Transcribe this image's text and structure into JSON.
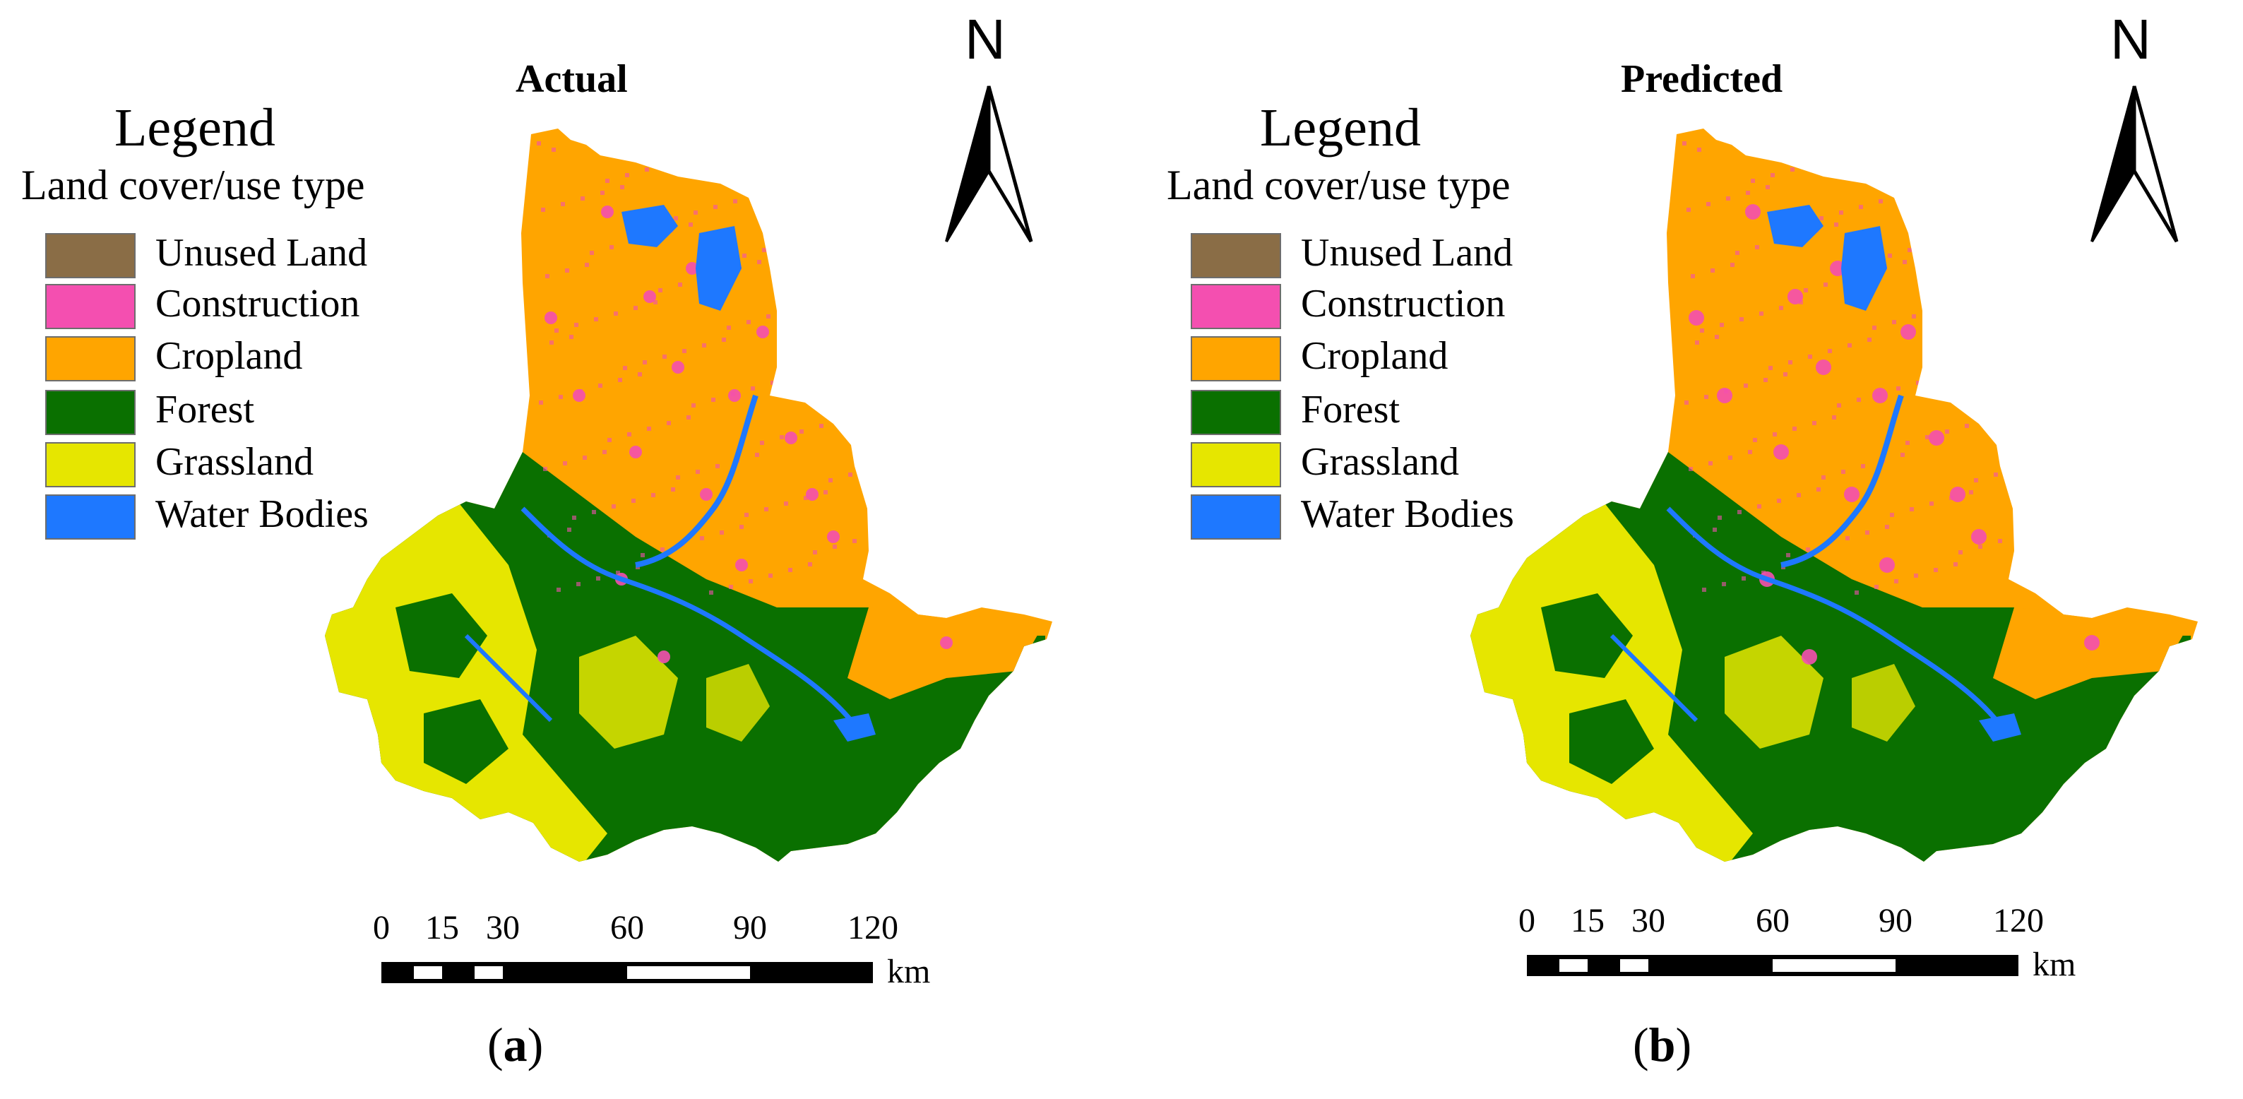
{
  "panels": [
    {
      "title": "Actual",
      "legend": {
        "title": "Legend",
        "subtitle": "Land cover/use type",
        "items": [
          {
            "label": "Unused Land",
            "color": "#8a6d46"
          },
          {
            "label": "Construction",
            "color": "#f44fb0"
          },
          {
            "label": "Cropland",
            "color": "#ffa500"
          },
          {
            "label": "Forest",
            "color": "#0a7000"
          },
          {
            "label": "Grassland",
            "color": "#e6e600"
          },
          {
            "label": "Water Bodies",
            "color": "#1e78ff"
          }
        ]
      },
      "north_arrow": "N",
      "scale_bar": {
        "ticks": [
          "0",
          "15",
          "30",
          "60",
          "90",
          "120"
        ],
        "unit": "km"
      },
      "caption": {
        "open": "(",
        "letter": "a",
        "close": ")"
      }
    },
    {
      "title": "Predicted",
      "legend": {
        "title": "Legend",
        "subtitle": "Land cover/use type",
        "items": [
          {
            "label": "Unused Land",
            "color": "#8a6d46"
          },
          {
            "label": "Construction",
            "color": "#f44fb0"
          },
          {
            "label": "Cropland",
            "color": "#ffa500"
          },
          {
            "label": "Forest",
            "color": "#0a7000"
          },
          {
            "label": "Grassland",
            "color": "#e6e600"
          },
          {
            "label": "Water Bodies",
            "color": "#1e78ff"
          }
        ]
      },
      "north_arrow": "N",
      "scale_bar": {
        "ticks": [
          "0",
          "15",
          "30",
          "60",
          "90",
          "120"
        ],
        "unit": "km"
      },
      "caption": {
        "open": "(",
        "letter": "b",
        "close": ")"
      }
    }
  ]
}
